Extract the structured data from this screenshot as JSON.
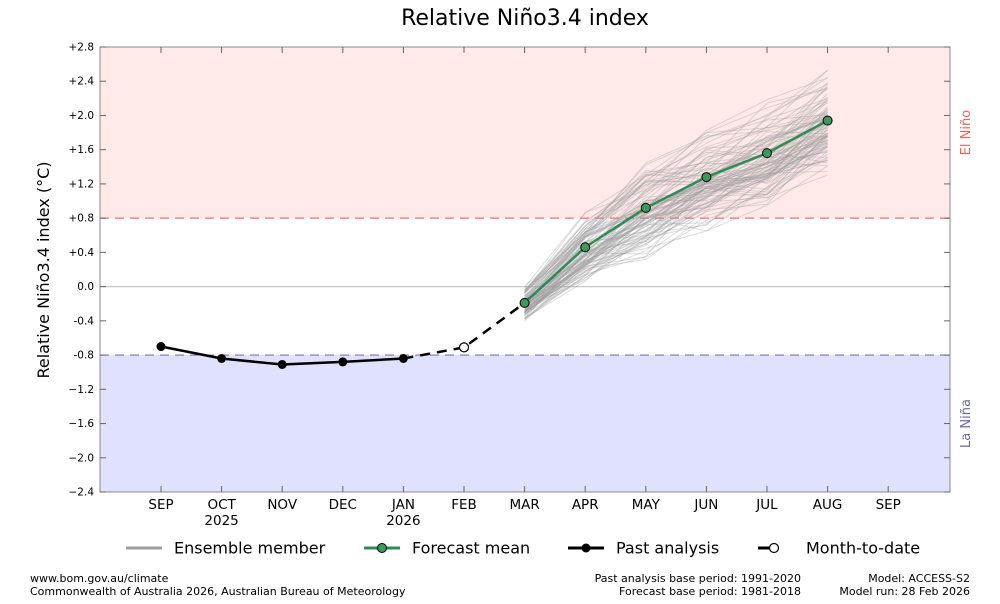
{
  "chart_data": {
    "type": "line",
    "title": "Relative Niño3.4 index",
    "ylabel": "Relative Niño3.4 index (°C)",
    "xlabel": "",
    "ylim": [
      -2.4,
      2.8
    ],
    "yticks": [
      {
        "value": 2.8,
        "label": "+2.8"
      },
      {
        "value": 2.4,
        "label": "+2.4"
      },
      {
        "value": 2.0,
        "label": "+2.0"
      },
      {
        "value": 1.6,
        "label": "+1.6"
      },
      {
        "value": 1.2,
        "label": "+1.2"
      },
      {
        "value": 0.8,
        "label": "+0.8"
      },
      {
        "value": 0.4,
        "label": "+0.4"
      },
      {
        "value": 0.0,
        "label": "0.0"
      },
      {
        "value": -0.4,
        "label": "-0.4"
      },
      {
        "value": -0.8,
        "label": "-0.8"
      },
      {
        "value": -1.2,
        "label": "−1.2"
      },
      {
        "value": -1.6,
        "label": "−1.6"
      },
      {
        "value": -2.0,
        "label": "−2.0"
      },
      {
        "value": -2.4,
        "label": "−2.4"
      }
    ],
    "months": [
      "SEP",
      "OCT",
      "NOV",
      "DEC",
      "JAN",
      "FEB",
      "MAR",
      "APR",
      "MAY",
      "JUN",
      "JUL",
      "AUG",
      "SEP"
    ],
    "year_labels": [
      {
        "index": 1,
        "label": "2025"
      },
      {
        "index": 4,
        "label": "2026"
      }
    ],
    "thresholds": {
      "el_nino": 0.8,
      "la_nina": -0.8
    },
    "regions": {
      "el_nino_label": "El Niño",
      "la_nina_label": "La Niña"
    },
    "colors": {
      "el_nino_fill": "#ffe9e9",
      "la_nina_fill": "#e0e0ff",
      "el_nino_line": "#e8706f",
      "la_nina_line": "#7476b8",
      "el_nino_text": "#e86464",
      "la_nina_text": "#6a6aaa",
      "ensemble": "#9e9e9e",
      "forecast": "#2e8b57",
      "forecast_marker": "#3c9a5f",
      "past": "#000000"
    },
    "series": [
      {
        "name": "Past analysis",
        "x": [
          0,
          1,
          2,
          3,
          4
        ],
        "values": [
          -0.7,
          -0.84,
          -0.91,
          -0.88,
          -0.84
        ]
      },
      {
        "name": "Month-to-date",
        "x": [
          4,
          5,
          6
        ],
        "values": [
          -0.84,
          -0.71,
          -0.19
        ]
      },
      {
        "name": "Forecast mean",
        "x": [
          6,
          7,
          8,
          9,
          10,
          11
        ],
        "values": [
          -0.19,
          0.46,
          0.92,
          1.28,
          1.56,
          1.94
        ]
      }
    ],
    "ensemble": {
      "x": [
        6,
        7,
        8,
        9,
        10,
        11
      ],
      "members": 99,
      "spread_min": [
        -0.48,
        0.05,
        0.25,
        0.65,
        0.95,
        1.3
      ],
      "spread_max": [
        0.02,
        1.12,
        1.5,
        1.9,
        2.2,
        2.55
      ]
    },
    "legend": [
      {
        "label": "Ensemble member",
        "style": "ensemble"
      },
      {
        "label": "Forecast mean",
        "style": "forecast"
      },
      {
        "label": "Past analysis",
        "style": "past"
      },
      {
        "label": "Month-to-date",
        "style": "mtd"
      }
    ]
  },
  "footer": {
    "left_line1": "www.bom.gov.au/climate",
    "left_line2": "Commonwealth of Australia 2026, Australian Bureau of Meteorology",
    "mid_line1": "Past analysis base period: 1991-2020",
    "mid_line2": "Forecast base period: 1981-2018",
    "right_line1": "Model: ACCESS-S2",
    "right_line2": "Model run: 28 Feb 2026"
  }
}
